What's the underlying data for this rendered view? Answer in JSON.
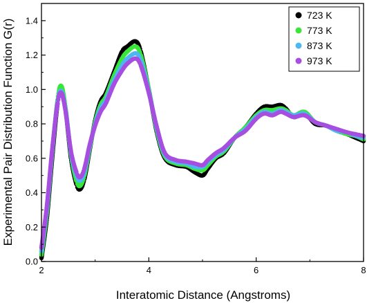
{
  "chart_data": {
    "type": "scatter",
    "xlabel": "Interatomic Distance (Angstroms)",
    "ylabel": "Experimental Pair Distribution Function G(r)",
    "xlim": [
      2,
      8
    ],
    "ylim": [
      0,
      1.5
    ],
    "x_ticks": [
      "2",
      "4",
      "6",
      "8"
    ],
    "y_ticks": [
      "0.0",
      "0.2",
      "0.4",
      "0.6",
      "0.8",
      "1.0",
      "1.2",
      "1.4"
    ],
    "grid": false,
    "legend_position": "top-right",
    "series": [
      {
        "name": "723 K",
        "color": "#000000",
        "points": [
          [
            2.0,
            0.02
          ],
          [
            2.1,
            0.25
          ],
          [
            2.2,
            0.6
          ],
          [
            2.3,
            0.92
          ],
          [
            2.37,
            1.0
          ],
          [
            2.45,
            0.88
          ],
          [
            2.55,
            0.6
          ],
          [
            2.65,
            0.45
          ],
          [
            2.72,
            0.42
          ],
          [
            2.8,
            0.48
          ],
          [
            2.9,
            0.65
          ],
          [
            3.0,
            0.82
          ],
          [
            3.1,
            0.93
          ],
          [
            3.2,
            0.98
          ],
          [
            3.35,
            1.1
          ],
          [
            3.5,
            1.22
          ],
          [
            3.6,
            1.25
          ],
          [
            3.75,
            1.28
          ],
          [
            3.85,
            1.22
          ],
          [
            4.0,
            1.0
          ],
          [
            4.15,
            0.75
          ],
          [
            4.3,
            0.6
          ],
          [
            4.5,
            0.56
          ],
          [
            4.7,
            0.55
          ],
          [
            4.85,
            0.52
          ],
          [
            5.0,
            0.5
          ],
          [
            5.1,
            0.54
          ],
          [
            5.25,
            0.6
          ],
          [
            5.4,
            0.63
          ],
          [
            5.6,
            0.72
          ],
          [
            5.8,
            0.78
          ],
          [
            6.0,
            0.86
          ],
          [
            6.15,
            0.9
          ],
          [
            6.3,
            0.9
          ],
          [
            6.45,
            0.91
          ],
          [
            6.55,
            0.89
          ],
          [
            6.7,
            0.84
          ],
          [
            6.9,
            0.86
          ],
          [
            7.1,
            0.8
          ],
          [
            7.3,
            0.79
          ],
          [
            7.5,
            0.76
          ],
          [
            7.7,
            0.74
          ],
          [
            7.85,
            0.72
          ],
          [
            8.0,
            0.7
          ]
        ]
      },
      {
        "name": "773 K",
        "color": "#39e639",
        "points": [
          [
            2.0,
            0.04
          ],
          [
            2.1,
            0.28
          ],
          [
            2.2,
            0.63
          ],
          [
            2.3,
            0.94
          ],
          [
            2.37,
            1.02
          ],
          [
            2.45,
            0.89
          ],
          [
            2.55,
            0.62
          ],
          [
            2.65,
            0.47
          ],
          [
            2.72,
            0.44
          ],
          [
            2.8,
            0.5
          ],
          [
            2.9,
            0.66
          ],
          [
            3.0,
            0.81
          ],
          [
            3.1,
            0.91
          ],
          [
            3.2,
            0.96
          ],
          [
            3.35,
            1.08
          ],
          [
            3.5,
            1.18
          ],
          [
            3.6,
            1.22
          ],
          [
            3.75,
            1.25
          ],
          [
            3.85,
            1.2
          ],
          [
            4.0,
            1.0
          ],
          [
            4.15,
            0.76
          ],
          [
            4.3,
            0.61
          ],
          [
            4.5,
            0.57
          ],
          [
            4.7,
            0.56
          ],
          [
            4.85,
            0.54
          ],
          [
            5.0,
            0.53
          ],
          [
            5.1,
            0.56
          ],
          [
            5.25,
            0.61
          ],
          [
            5.4,
            0.64
          ],
          [
            5.6,
            0.72
          ],
          [
            5.8,
            0.78
          ],
          [
            6.0,
            0.85
          ],
          [
            6.15,
            0.88
          ],
          [
            6.3,
            0.88
          ],
          [
            6.45,
            0.89
          ],
          [
            6.55,
            0.88
          ],
          [
            6.7,
            0.85
          ],
          [
            6.9,
            0.87
          ],
          [
            7.1,
            0.81
          ],
          [
            7.3,
            0.79
          ],
          [
            7.5,
            0.76
          ],
          [
            7.7,
            0.74
          ],
          [
            7.85,
            0.73
          ],
          [
            8.0,
            0.71
          ]
        ]
      },
      {
        "name": "873 K",
        "color": "#4db8f0",
        "points": [
          [
            2.0,
            0.06
          ],
          [
            2.1,
            0.3
          ],
          [
            2.2,
            0.64
          ],
          [
            2.3,
            0.93
          ],
          [
            2.37,
            0.99
          ],
          [
            2.45,
            0.88
          ],
          [
            2.55,
            0.63
          ],
          [
            2.65,
            0.5
          ],
          [
            2.72,
            0.47
          ],
          [
            2.8,
            0.52
          ],
          [
            2.9,
            0.67
          ],
          [
            3.0,
            0.8
          ],
          [
            3.1,
            0.89
          ],
          [
            3.2,
            0.94
          ],
          [
            3.35,
            1.05
          ],
          [
            3.5,
            1.14
          ],
          [
            3.6,
            1.18
          ],
          [
            3.75,
            1.21
          ],
          [
            3.85,
            1.17
          ],
          [
            4.0,
            0.99
          ],
          [
            4.15,
            0.77
          ],
          [
            4.3,
            0.62
          ],
          [
            4.5,
            0.58
          ],
          [
            4.7,
            0.57
          ],
          [
            4.85,
            0.55
          ],
          [
            5.0,
            0.55
          ],
          [
            5.1,
            0.58
          ],
          [
            5.25,
            0.62
          ],
          [
            5.4,
            0.65
          ],
          [
            5.6,
            0.72
          ],
          [
            5.8,
            0.77
          ],
          [
            6.0,
            0.84
          ],
          [
            6.15,
            0.87
          ],
          [
            6.3,
            0.86
          ],
          [
            6.45,
            0.88
          ],
          [
            6.55,
            0.87
          ],
          [
            6.7,
            0.85
          ],
          [
            6.9,
            0.86
          ],
          [
            7.1,
            0.81
          ],
          [
            7.3,
            0.79
          ],
          [
            7.5,
            0.76
          ],
          [
            7.7,
            0.75
          ],
          [
            7.85,
            0.73
          ],
          [
            8.0,
            0.72
          ]
        ]
      },
      {
        "name": "973 K",
        "color": "#a64ee0",
        "points": [
          [
            2.0,
            0.08
          ],
          [
            2.1,
            0.32
          ],
          [
            2.2,
            0.65
          ],
          [
            2.3,
            0.92
          ],
          [
            2.37,
            0.98
          ],
          [
            2.45,
            0.87
          ],
          [
            2.55,
            0.64
          ],
          [
            2.65,
            0.52
          ],
          [
            2.72,
            0.49
          ],
          [
            2.8,
            0.54
          ],
          [
            2.9,
            0.68
          ],
          [
            3.0,
            0.79
          ],
          [
            3.1,
            0.87
          ],
          [
            3.2,
            0.92
          ],
          [
            3.35,
            1.03
          ],
          [
            3.5,
            1.11
          ],
          [
            3.6,
            1.15
          ],
          [
            3.75,
            1.18
          ],
          [
            3.85,
            1.14
          ],
          [
            4.0,
            0.98
          ],
          [
            4.15,
            0.78
          ],
          [
            4.3,
            0.63
          ],
          [
            4.5,
            0.59
          ],
          [
            4.7,
            0.58
          ],
          [
            4.85,
            0.57
          ],
          [
            5.0,
            0.56
          ],
          [
            5.1,
            0.59
          ],
          [
            5.25,
            0.63
          ],
          [
            5.4,
            0.66
          ],
          [
            5.6,
            0.72
          ],
          [
            5.8,
            0.76
          ],
          [
            6.0,
            0.83
          ],
          [
            6.15,
            0.86
          ],
          [
            6.3,
            0.85
          ],
          [
            6.45,
            0.87
          ],
          [
            6.55,
            0.86
          ],
          [
            6.7,
            0.84
          ],
          [
            6.9,
            0.85
          ],
          [
            7.1,
            0.81
          ],
          [
            7.3,
            0.79
          ],
          [
            7.5,
            0.77
          ],
          [
            7.7,
            0.75
          ],
          [
            7.85,
            0.74
          ],
          [
            8.0,
            0.73
          ]
        ]
      }
    ]
  }
}
